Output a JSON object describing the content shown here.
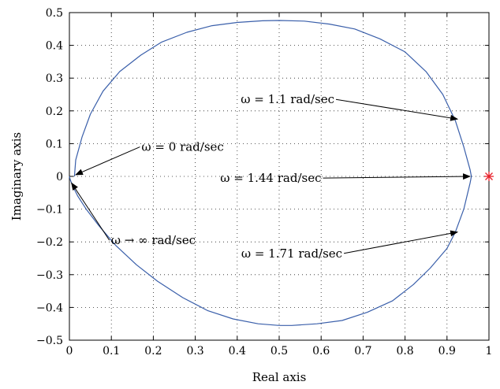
{
  "chart_data": {
    "type": "line",
    "title": "",
    "xlabel": "Real axis",
    "ylabel": "Imaginary axis",
    "xlim": [
      0,
      1
    ],
    "ylim": [
      -0.5,
      0.5
    ],
    "grid": true,
    "x_ticks": [
      "0",
      "0.1",
      "0.2",
      "0.3",
      "0.4",
      "0.5",
      "0.6",
      "0.7",
      "0.8",
      "0.9",
      "1"
    ],
    "y_ticks": [
      "0.5",
      "0.4",
      "0.3",
      "0.2",
      "0.1",
      "0",
      "−0.1",
      "−0.2",
      "−0.3",
      "−0.4",
      "−0.5"
    ],
    "x_tick_values": [
      0,
      0.1,
      0.2,
      0.3,
      0.4,
      0.5,
      0.6,
      0.7,
      0.8,
      0.9,
      1
    ],
    "y_tick_values": [
      0.5,
      0.4,
      0.3,
      0.2,
      0.1,
      0,
      -0.1,
      -0.2,
      -0.3,
      -0.4,
      -0.5
    ],
    "series": [
      {
        "color": "#3a5faa",
        "x": [
          0.012,
          0.015,
          0.03,
          0.05,
          0.08,
          0.12,
          0.17,
          0.22,
          0.28,
          0.34,
          0.4,
          0.46,
          0.5,
          0.56,
          0.62,
          0.68,
          0.74,
          0.8,
          0.85,
          0.89,
          0.92,
          0.94,
          0.955,
          0.958,
          0.955,
          0.94,
          0.92,
          0.9,
          0.86,
          0.82,
          0.77,
          0.71,
          0.65,
          0.59,
          0.53,
          0.5,
          0.45,
          0.39,
          0.33,
          0.27,
          0.21,
          0.16,
          0.11,
          0.07,
          0.04,
          0.02,
          0.008,
          0.002,
          0.0
        ],
        "y": [
          0.0,
          0.05,
          0.12,
          0.19,
          0.26,
          0.32,
          0.37,
          0.41,
          0.44,
          0.46,
          0.47,
          0.475,
          0.476,
          0.474,
          0.465,
          0.45,
          0.42,
          0.38,
          0.32,
          0.25,
          0.17,
          0.09,
          0.02,
          0.0,
          -0.02,
          -0.1,
          -0.17,
          -0.22,
          -0.28,
          -0.33,
          -0.38,
          -0.415,
          -0.44,
          -0.45,
          -0.455,
          -0.455,
          -0.45,
          -0.435,
          -0.41,
          -0.37,
          -0.32,
          -0.27,
          -0.21,
          -0.15,
          -0.1,
          -0.06,
          -0.03,
          -0.01,
          0.0
        ]
      }
    ],
    "marker": {
      "x": 1.0,
      "y": 0.0,
      "symbol": "*",
      "color": "#e8202a"
    },
    "annotations": [
      {
        "text": "ω = 0 rad/sec",
        "text_x": 0.27,
        "text_y": 0.09,
        "arrow_to": [
          0.015,
          0.005
        ]
      },
      {
        "text": "ω = 1.1 rad/sec",
        "text_x": 0.52,
        "text_y": 0.235,
        "arrow_to": [
          0.925,
          0.175
        ]
      },
      {
        "text": "ω = 1.44 rad/sec",
        "text_x": 0.48,
        "text_y": -0.005,
        "arrow_to": [
          0.955,
          0.0
        ]
      },
      {
        "text": "ω → ∞ rad/sec",
        "text_x": 0.2,
        "text_y": -0.195,
        "arrow_to": [
          0.005,
          -0.02
        ]
      },
      {
        "text": "ω = 1.71 rad/sec",
        "text_x": 0.53,
        "text_y": -0.235,
        "arrow_to": [
          0.925,
          -0.17
        ]
      }
    ]
  }
}
